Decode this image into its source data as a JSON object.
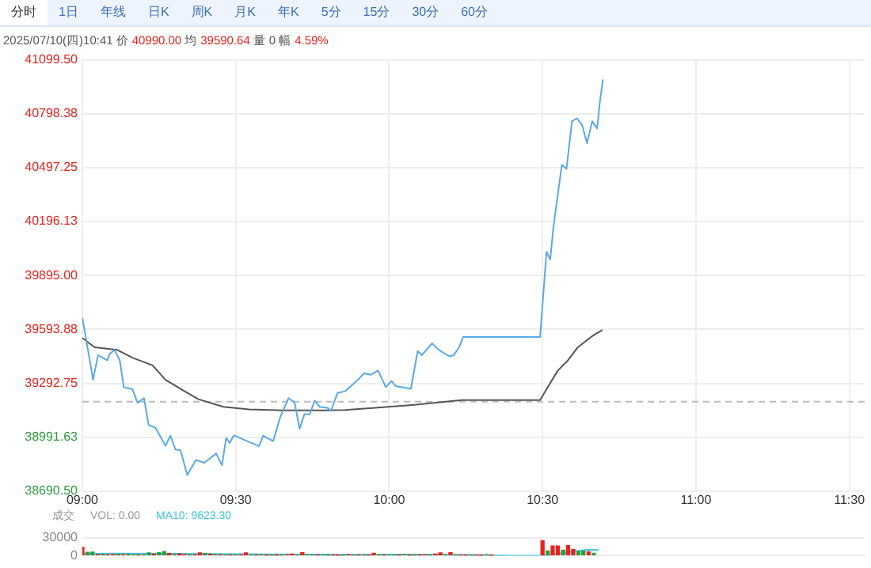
{
  "chart_data": [
    {
      "type": "other",
      "categories": [
        "分时",
        "1日",
        "年线",
        "日K",
        "周K",
        "月K",
        "年K",
        "5分",
        "15分",
        "30分",
        "60分"
      ],
      "annotations": [
        "2025/07/10(四)10:41",
        "价",
        "40990.00",
        "均",
        "39590.64",
        "量",
        "0",
        "幅",
        "4.59%"
      ]
    },
    {
      "type": "line",
      "xlim": [
        9,
        11.55
      ],
      "xticks": [
        {
          "value": 9,
          "label": "09:00"
        },
        {
          "value": 9.5,
          "label": "09:30"
        },
        {
          "value": 10,
          "label": "10:00"
        },
        {
          "value": 10.5,
          "label": "10:30"
        },
        {
          "value": 11,
          "label": "11:00"
        },
        {
          "value": 11.5,
          "label": "11:30"
        }
      ],
      "ylim": [
        38690.5,
        41099.5
      ],
      "yticks": [
        {
          "value": 38690.5,
          "label": "38690.50"
        },
        {
          "value": 38991.63,
          "label": "38991.63"
        },
        {
          "value": 39292.75,
          "label": "39292.75"
        },
        {
          "value": 39593.88,
          "label": "39593.88"
        },
        {
          "value": 39895,
          "label": "39895.00"
        },
        {
          "value": 40196.13,
          "label": "40196.13"
        },
        {
          "value": 40497.25,
          "label": "40497.25"
        },
        {
          "value": 40798.38,
          "label": "40798.38"
        },
        {
          "value": 41099.5,
          "label": "41099.50"
        }
      ],
      "grid": true,
      "legend": false,
      "ref_lines": [
        {
          "axis": "y",
          "value": 39190,
          "color": "#bbbbbb",
          "line_style": "dashed"
        }
      ],
      "series": [
        {
          "color": "#5aa9e6",
          "x": [
            9.0,
            9.035,
            9.051,
            9.081,
            9.089,
            9.105,
            9.122,
            9.135,
            9.163,
            9.18,
            9.201,
            9.216,
            9.238,
            9.271,
            9.287,
            9.303,
            9.32,
            9.342,
            9.37,
            9.398,
            9.436,
            9.455,
            9.469,
            9.48,
            9.494,
            9.543,
            9.576,
            9.589,
            9.622,
            9.645,
            9.672,
            9.692,
            9.708,
            9.724,
            9.741,
            9.757,
            9.774,
            9.799,
            9.81,
            9.832,
            9.856,
            9.89,
            9.919,
            9.939,
            9.964,
            9.989,
            10.008,
            10.021,
            10.071,
            10.093,
            10.107,
            10.14,
            10.162,
            10.195,
            10.211,
            10.228,
            10.241,
            10.492,
            10.513,
            10.525,
            10.536,
            10.563,
            10.578,
            10.596,
            10.612,
            10.629,
            10.645,
            10.662,
            10.678,
            10.687,
            10.697
          ],
          "values": [
            39660,
            39312,
            39450,
            39421,
            39456,
            39479,
            39421,
            39271,
            39260,
            39184,
            39210,
            39060,
            39045,
            38944,
            39000,
            38924,
            38918,
            38780,
            38864,
            38849,
            38901,
            38835,
            38988,
            38959,
            39002,
            38965,
            38942,
            39000,
            38970,
            39104,
            39210,
            39184,
            39039,
            39121,
            39118,
            39196,
            39161,
            39156,
            39138,
            39239,
            39248,
            39299,
            39349,
            39340,
            39364,
            39271,
            39306,
            39277,
            39262,
            39473,
            39450,
            39516,
            39479,
            39444,
            39450,
            39494,
            39551,
            39551,
            40027,
            39984,
            40172,
            40513,
            40490,
            40756,
            40773,
            40735,
            40634,
            40756,
            40716,
            40866,
            40990
          ]
        },
        {
          "color": "#555555",
          "x": [
            9.0,
            9.04,
            9.114,
            9.163,
            9.229,
            9.271,
            9.328,
            9.378,
            9.46,
            9.543,
            9.658,
            9.791,
            9.856,
            9.955,
            10.088,
            10.236,
            10.492,
            10.516,
            10.55,
            10.583,
            10.615,
            10.665,
            10.695
          ],
          "values": [
            39546,
            39494,
            39479,
            39436,
            39393,
            39312,
            39254,
            39204,
            39161,
            39147,
            39141,
            39141,
            39144,
            39156,
            39173,
            39199,
            39199,
            39268,
            39364,
            39421,
            39494,
            39560,
            39590
          ]
        }
      ]
    },
    {
      "type": "bar",
      "xlim": [
        9,
        11.55
      ],
      "ylim": [
        0,
        30000
      ],
      "yticks": [
        0,
        30000
      ],
      "grid": true,
      "tick_labels": "y",
      "legend": false,
      "annotations": [
        "成交",
        "VOL: 0.00",
        "MA10: 9623.30"
      ],
      "series": [
        {
          "type": "bar",
          "x": [
            9.0,
            9.017,
            9.033,
            9.05,
            9.067,
            9.083,
            9.1,
            9.117,
            9.133,
            9.15,
            9.167,
            9.183,
            9.2,
            9.217,
            9.233,
            9.25,
            9.267,
            9.283,
            9.3,
            9.317,
            9.333,
            9.35,
            9.367,
            9.383,
            9.4,
            9.417,
            9.433,
            9.45,
            9.467,
            9.483,
            9.5,
            9.517,
            9.533,
            9.55,
            9.567,
            9.583,
            9.6,
            9.617,
            9.633,
            9.65,
            9.667,
            9.683,
            9.7,
            9.717,
            9.733,
            9.75,
            9.767,
            9.783,
            9.8,
            9.817,
            9.833,
            9.85,
            9.867,
            9.883,
            9.9,
            9.917,
            9.933,
            9.95,
            9.967,
            9.983,
            10.0,
            10.017,
            10.033,
            10.05,
            10.067,
            10.083,
            10.1,
            10.117,
            10.133,
            10.15,
            10.167,
            10.183,
            10.2,
            10.217,
            10.233,
            10.25,
            10.267,
            10.283,
            10.3,
            10.317,
            10.333,
            10.5,
            10.517,
            10.533,
            10.55,
            10.567,
            10.583,
            10.6,
            10.617,
            10.633,
            10.65,
            10.667
          ],
          "values": [
            14000,
            5500,
            6000,
            2000,
            2500,
            1500,
            1800,
            2500,
            1500,
            2500,
            1500,
            1000,
            1200,
            4500,
            2500,
            5000,
            7000,
            3500,
            2000,
            3000,
            1500,
            1500,
            1000,
            4500,
            3500,
            2500,
            2000,
            1500,
            1000,
            1000,
            1500,
            1200,
            4500,
            1000,
            1000,
            1000,
            800,
            600,
            500,
            800,
            1500,
            2500,
            1000,
            5000,
            1500,
            1200,
            800,
            1000,
            500,
            800,
            500,
            500,
            2000,
            800,
            600,
            700,
            800,
            4000,
            1000,
            800,
            1200,
            700,
            600,
            2000,
            500,
            800,
            600,
            1500,
            800,
            2500,
            4500,
            1500,
            5000,
            1200,
            1000,
            800,
            700,
            800,
            500,
            1500,
            500,
            25000,
            7800,
            16000,
            16000,
            9200,
            16600,
            10600,
            7000,
            7500,
            6500,
            4000
          ],
          "colors": [
            "#e8231e",
            "#2e9b3f",
            "#2e9b3f",
            "#e8231e",
            "#2e9b3f",
            "#e8231e",
            "#e8231e",
            "#2e9b3f",
            "#e8231e",
            "#2e9b3f",
            "#2e9b3f",
            "#e8231e",
            "#2e9b3f",
            "#2e9b3f",
            "#e8231e",
            "#2e9b3f",
            "#2e9b3f",
            "#e8231e",
            "#2e9b3f",
            "#e8231e",
            "#e8231e",
            "#2e9b3f",
            "#e8231e",
            "#e8231e",
            "#2e9b3f",
            "#e8231e",
            "#2e9b3f",
            "#e8231e",
            "#2e9b3f",
            "#e8231e",
            "#2e9b3f",
            "#e8231e",
            "#e8231e",
            "#2e9b3f",
            "#e8231e",
            "#2e9b3f",
            "#e8231e",
            "#2e9b3f",
            "#e8231e",
            "#2e9b3f",
            "#e8231e",
            "#e8231e",
            "#2e9b3f",
            "#e8231e",
            "#2e9b3f",
            "#2e9b3f",
            "#e8231e",
            "#2e9b3f",
            "#2e9b3f",
            "#e8231e",
            "#e8231e",
            "#2e9b3f",
            "#e8231e",
            "#2e9b3f",
            "#e8231e",
            "#2e9b3f",
            "#e8231e",
            "#e8231e",
            "#2e9b3f",
            "#e8231e",
            "#2e9b3f",
            "#2e9b3f",
            "#e8231e",
            "#2e9b3f",
            "#e8231e",
            "#2e9b3f",
            "#e8231e",
            "#e8231e",
            "#2e9b3f",
            "#e8231e",
            "#e8231e",
            "#2e9b3f",
            "#e8231e",
            "#2e9b3f",
            "#e8231e",
            "#e8231e",
            "#2e9b3f",
            "#e8231e",
            "#e8231e",
            "#2e9b3f",
            "#e8231e",
            "#e8231e",
            "#2e9b3f",
            "#e8231e",
            "#e8231e",
            "#2e9b3f",
            "#e8231e",
            "#e8231e",
            "#2e9b3f",
            "#2e9b3f",
            "#e8231e",
            "#2e9b3f"
          ]
        },
        {
          "type": "line",
          "color": "#3ec6e0",
          "x": [
            9.0,
            9.1,
            9.3,
            9.5,
            9.7,
            9.9,
            10.1,
            10.3,
            10.4,
            10.5,
            10.55,
            10.6,
            10.65,
            10.683
          ],
          "values": [
            3000,
            3500,
            3000,
            2500,
            2000,
            1500,
            2000,
            1000,
            0,
            0,
            3000,
            7000,
            10000,
            9000
          ]
        }
      ]
    }
  ]
}
